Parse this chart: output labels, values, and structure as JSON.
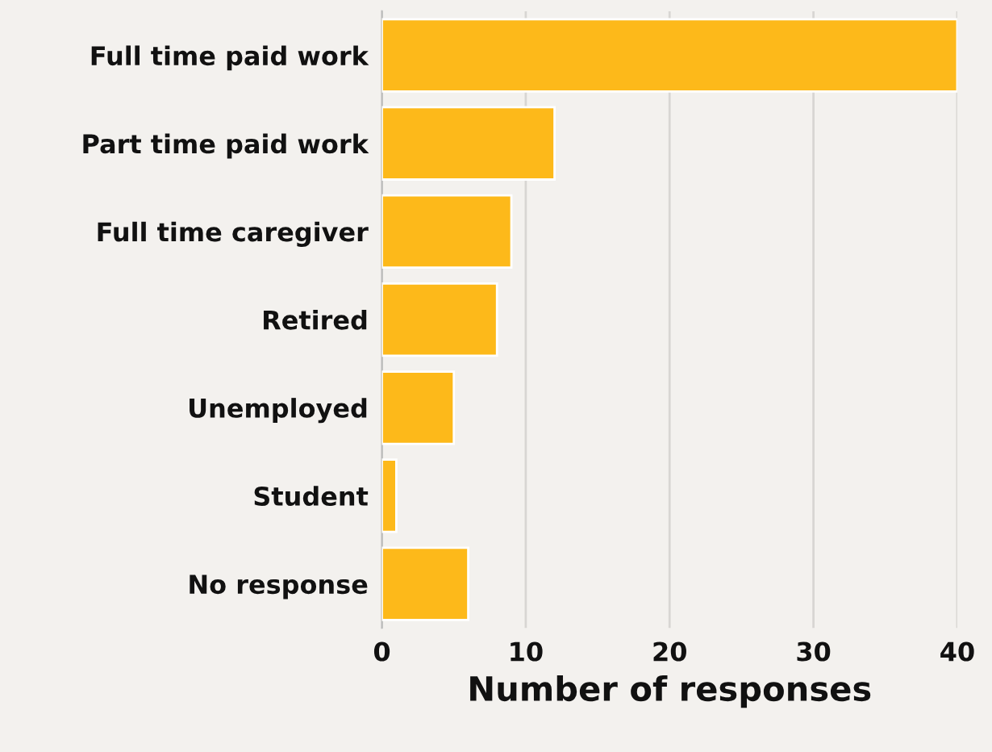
{
  "chart_data": {
    "type": "bar",
    "orientation": "horizontal",
    "xlabel": "Number of responses",
    "categories": [
      "Full time paid work",
      "Part time paid work",
      "Full time caregiver",
      "Retired",
      "Unemployed",
      "Student",
      "No response"
    ],
    "values": [
      40,
      12,
      9,
      8,
      5,
      1,
      6
    ],
    "color": "#fdb91a",
    "xlim": [
      0,
      40
    ],
    "xticks": [
      0,
      10,
      20,
      30,
      40
    ],
    "grid": "x"
  }
}
